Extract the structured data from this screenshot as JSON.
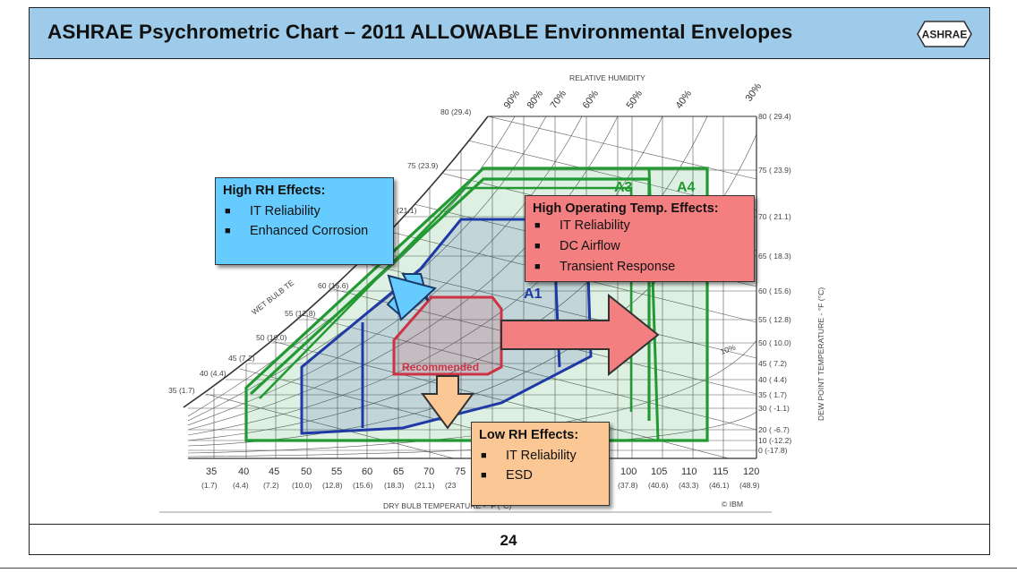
{
  "title": "ASHRAE Psychrometric Chart – 2011 ALLOWABLE Environmental Envelopes",
  "logo_text": "ASHRAE",
  "page_number": "24",
  "chart": {
    "relative_humidity_label": "RELATIVE HUMIDITY",
    "rh_labels": [
      "90%",
      "80%",
      "70%",
      "60%",
      "50%",
      "40%",
      "30%"
    ],
    "rh_low_label": "10%",
    "wet_bulb_label": "WET BULB TE",
    "wet_bulb_ticks": [
      "80 (29.4)",
      "75 (23.9)",
      "(21.1)",
      "60 (15.6)",
      "55 (12.8)",
      "50 (10.0)",
      "45 (7.2)",
      "40 (4.4)",
      "35 (1.7)"
    ],
    "dew_point_ticks": [
      "80 ( 29.4)",
      "75 ( 23.9)",
      "70 ( 21.1)",
      "65 ( 18.3)",
      "60 ( 15.6)",
      "55 ( 12.8)",
      "50 ( 10.0)",
      "45 ( 7.2)",
      "40 ( 4.4)",
      "35 ( 1.7)",
      "30 ( -1.1)",
      "20 ( -6.7)",
      "10 (-12.2)",
      "0 (-17.8)"
    ],
    "dew_point_axis_label": "DEW POINT TEMPERATURE - °F (°C)",
    "dry_bulb_ticks_f": [
      "35",
      "40",
      "45",
      "50",
      "55",
      "60",
      "65",
      "70",
      "75",
      "",
      "",
      "",
      "",
      "",
      "100",
      "105",
      "110",
      "115",
      "120"
    ],
    "dry_bulb_ticks_c": [
      "(1.7)",
      "(4.4)",
      "(7.2)",
      "(10.0)",
      "(12.8)",
      "(15.6)",
      "(18.3)",
      "(21.1)",
      "(23",
      "",
      "",
      "",
      "",
      "",
      "(37.8)",
      "(40.6)",
      "(43.3)",
      "(46.1)",
      "(48.9)"
    ],
    "dry_bulb_axis_label": "DRY BULB TEMPERATURE - °F (°C)",
    "copyright": "© IBM",
    "envelopes": {
      "a1": "A1",
      "a3": "A3",
      "a4": "A4",
      "recommended": "Recommended"
    }
  },
  "callouts": {
    "high_rh": {
      "title": "High RH Effects:",
      "items": [
        "IT Reliability",
        "Enhanced Corrosion"
      ],
      "color": "#66ccff"
    },
    "high_temp": {
      "title": "High Operating Temp. Effects:",
      "items": [
        "IT Reliability",
        "DC Airflow",
        "Transient Response"
      ],
      "color": "#f47f81"
    },
    "low_rh": {
      "title": "Low RH Effects:",
      "items": [
        "IT Reliability",
        "ESD"
      ],
      "color": "#fac795"
    }
  },
  "colors": {
    "title_bar": "#9dcbe9",
    "a4_envelope": "#229933",
    "a1_envelope": "#1f3aa6",
    "recommended": "#cc3344"
  }
}
